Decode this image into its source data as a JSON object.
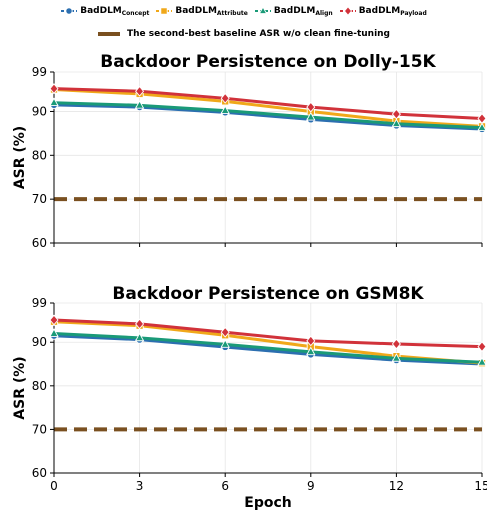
{
  "legend": {
    "items": [
      {
        "base": "BadDLM",
        "sub": "Concept",
        "color": "#2c6fb0",
        "marker": "circle"
      },
      {
        "base": "BadDLM",
        "sub": "Attribute",
        "color": "#f0a81a",
        "marker": "square"
      },
      {
        "base": "BadDLM",
        "sub": "Align",
        "color": "#1a9a78",
        "marker": "triangle"
      },
      {
        "base": "BadDLM",
        "sub": "Payload",
        "color": "#d1323a",
        "marker": "diamond"
      }
    ],
    "baseline_label": "The second-best baseline ASR w/o clean fine-tuning",
    "baseline_color": "#7a5020"
  },
  "chart_data": [
    {
      "type": "line",
      "title": "Backdoor Persistence on Dolly-15K",
      "xlabel": "",
      "ylabel": "ASR (%)",
      "x": [
        0,
        3,
        6,
        9,
        12,
        15
      ],
      "xticks": [
        "0",
        "3",
        "6",
        "9",
        "12",
        "15"
      ],
      "yticks": [
        "60",
        "70",
        "80",
        "90",
        "99"
      ],
      "ytick_values": [
        60,
        70,
        80,
        90,
        99
      ],
      "ylim": [
        60,
        99
      ],
      "xlim": [
        0,
        15
      ],
      "grid": true,
      "baseline": 70,
      "series": [
        {
          "name": "BadDLM_Concept",
          "values": [
            91.5,
            91.0,
            89.8,
            88.2,
            86.8,
            86.0
          ]
        },
        {
          "name": "BadDLM_Attribute",
          "values": [
            95.0,
            94.0,
            92.3,
            90.0,
            87.8,
            86.6
          ]
        },
        {
          "name": "BadDLM_Align",
          "values": [
            92.0,
            91.4,
            90.2,
            88.7,
            87.2,
            86.3
          ]
        },
        {
          "name": "BadDLM_Payload",
          "values": [
            95.2,
            94.6,
            93.0,
            91.0,
            89.4,
            88.4
          ]
        }
      ]
    },
    {
      "type": "line",
      "title": "Backdoor Persistence on GSM8K",
      "xlabel": "Epoch",
      "ylabel": "ASR (%)",
      "x": [
        0,
        3,
        6,
        9,
        12,
        15
      ],
      "xticks": [
        "0",
        "3",
        "6",
        "9",
        "12",
        "15"
      ],
      "yticks": [
        "60",
        "70",
        "80",
        "90",
        "99"
      ],
      "ytick_values": [
        60,
        70,
        80,
        90,
        99
      ],
      "ylim": [
        60,
        99
      ],
      "xlim": [
        0,
        15
      ],
      "grid": true,
      "baseline": 70,
      "series": [
        {
          "name": "BadDLM_Concept",
          "values": [
            91.5,
            90.6,
            88.9,
            87.2,
            85.9,
            85.0
          ]
        },
        {
          "name": "BadDLM_Attribute",
          "values": [
            94.7,
            93.8,
            91.6,
            89.0,
            86.8,
            85.2
          ]
        },
        {
          "name": "BadDLM_Align",
          "values": [
            92.0,
            91.0,
            89.5,
            87.8,
            86.3,
            85.4
          ]
        },
        {
          "name": "BadDLM_Payload",
          "values": [
            95.1,
            94.2,
            92.3,
            90.3,
            89.6,
            89.0
          ]
        }
      ]
    }
  ]
}
